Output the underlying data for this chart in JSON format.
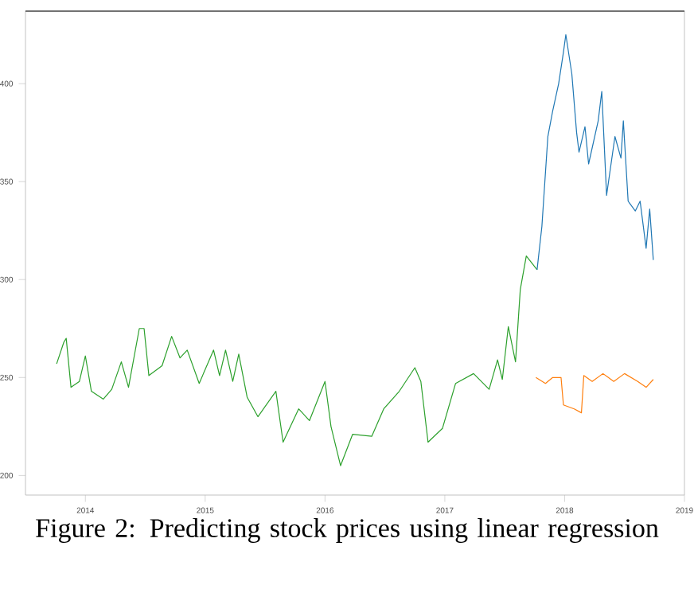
{
  "chart_data": {
    "type": "line",
    "title": "Figure 2: Predicting stock prices using linear regression",
    "xlim": [
      2013.5,
      2019.0
    ],
    "ylim": [
      190,
      437
    ],
    "xticks": [
      2014,
      2015,
      2016,
      2017,
      2018,
      2019
    ],
    "yticks": [
      200,
      250,
      300,
      350,
      400
    ],
    "grid": false,
    "series": [
      {
        "color": "#2ca02c",
        "x": [
          2013.76,
          2013.82,
          2013.84,
          2013.88,
          2013.95,
          2014.0,
          2014.05,
          2014.15,
          2014.22,
          2014.3,
          2014.36,
          2014.45,
          2014.49,
          2014.53,
          2014.64,
          2014.72,
          2014.79,
          2014.85,
          2014.95,
          2015.07,
          2015.12,
          2015.17,
          2015.23,
          2015.28,
          2015.35,
          2015.44,
          2015.59,
          2015.65,
          2015.78,
          2015.87,
          2016.0,
          2016.05,
          2016.13,
          2016.23,
          2016.39,
          2016.49,
          2016.62,
          2016.75,
          2016.8,
          2016.86,
          2016.98,
          2017.09,
          2017.24,
          2017.37,
          2017.44,
          2017.48,
          2017.53,
          2017.59,
          2017.63,
          2017.68,
          2017.77
        ],
        "values": [
          257,
          268,
          270,
          245,
          248,
          261,
          243,
          239,
          244,
          258,
          245,
          275,
          275,
          251,
          256,
          271,
          260,
          264,
          247,
          264,
          251,
          264,
          248,
          262,
          240,
          230,
          243,
          217,
          234,
          228,
          248,
          225,
          205,
          221,
          220,
          234,
          243,
          255,
          248,
          217,
          224,
          247,
          252,
          244,
          259,
          249,
          276,
          258,
          295,
          312,
          305
        ]
      },
      {
        "color": "#1f77b4",
        "x": [
          2017.77,
          2017.81,
          2017.86,
          2017.9,
          2017.95,
          2017.99,
          2018.01,
          2018.06,
          2018.1,
          2018.12,
          2018.17,
          2018.2,
          2018.28,
          2018.31,
          2018.35,
          2018.42,
          2018.47,
          2018.49,
          2018.53,
          2018.59,
          2018.63,
          2018.68,
          2018.71,
          2018.74
        ],
        "values": [
          305,
          327,
          373,
          386,
          400,
          416,
          425,
          405,
          375,
          365,
          378,
          359,
          381,
          396,
          343,
          373,
          362,
          381,
          340,
          335,
          340,
          316,
          336,
          310
        ]
      },
      {
        "color": "#ff7f0e",
        "x": [
          2017.76,
          2017.84,
          2017.9,
          2017.97,
          2017.99,
          2018.08,
          2018.14,
          2018.16,
          2018.23,
          2018.32,
          2018.41,
          2018.5,
          2018.61,
          2018.68,
          2018.74
        ],
        "values": [
          250,
          247,
          250,
          250,
          236,
          234,
          232,
          251,
          248,
          252,
          248,
          252,
          248,
          245,
          249
        ]
      }
    ]
  }
}
